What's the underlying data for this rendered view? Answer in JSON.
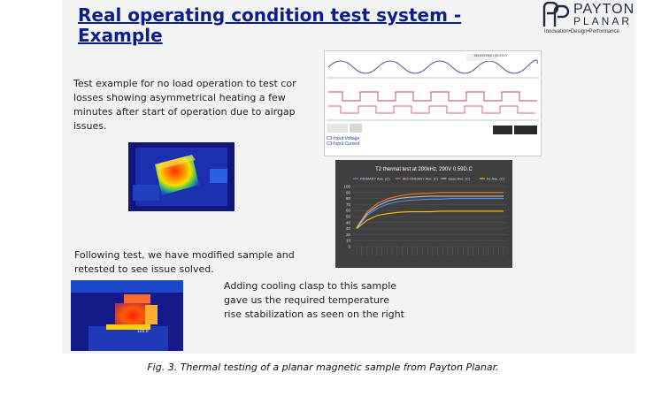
{
  "slide": {
    "title": "Real operating condition test system - Example",
    "logo": {
      "word1": "PAYTON",
      "word2": "PLANAR",
      "tagline": "Innovation•Design•Performance",
      "mark_icon": "pp-logo-mark-icon"
    },
    "paragraph1_lines": [
      "Test example for no load operation to test cor",
      " losses showing asymmetrical heating  a few",
      "minutes after start of operation due to airgap",
      "issues."
    ],
    "paragraph2_lines": [
      "Following test, we have modified sample and",
      "retested to see issue solved."
    ],
    "paragraph3_lines": [
      "Adding cooling clasp to this sample",
      "gave us the required temperature",
      "rise stabilization as seen on the right"
    ],
    "thermal2_label": "125.0",
    "scope": {
      "legend_lines": [
        "C3-Input Voltage",
        "C3-Input Current"
      ],
      "brand": "TELEDYNE LECROY"
    }
  },
  "chart_data": {
    "type": "line",
    "title": "T2 thermal test at 200kHz, 290V 0.59D.C",
    "ylim": [
      0,
      100
    ],
    "yticks": [
      0,
      10,
      20,
      30,
      40,
      50,
      60,
      70,
      80,
      90,
      100
    ],
    "series": [
      {
        "name": "PRIMARY Ave. (C)",
        "color": "#4f8ee6",
        "values": [
          30,
          52,
          64,
          71,
          75,
          77,
          78,
          79,
          79,
          80,
          80,
          80,
          80,
          80,
          80
        ]
      },
      {
        "name": "SECONDARY Ave. (C)",
        "color": "#f07b2b",
        "values": [
          32,
          58,
          72,
          80,
          84,
          87,
          88,
          89,
          90,
          90,
          90,
          90,
          90,
          90,
          90
        ]
      },
      {
        "name": "clasp Ave. (C)",
        "color": "#c0c0c0",
        "values": [
          31,
          55,
          68,
          76,
          80,
          82,
          83,
          84,
          84,
          84,
          84,
          84,
          84,
          84,
          84
        ]
      },
      {
        "name": "Fe Ave. (C)",
        "color": "#ffc000",
        "values": [
          30,
          44,
          52,
          55,
          57,
          58,
          58,
          58,
          59,
          59,
          59,
          59,
          59,
          59,
          59
        ]
      }
    ]
  },
  "caption": "Fig. 3. Thermal testing of a planar magnetic sample from Payton Planar."
}
